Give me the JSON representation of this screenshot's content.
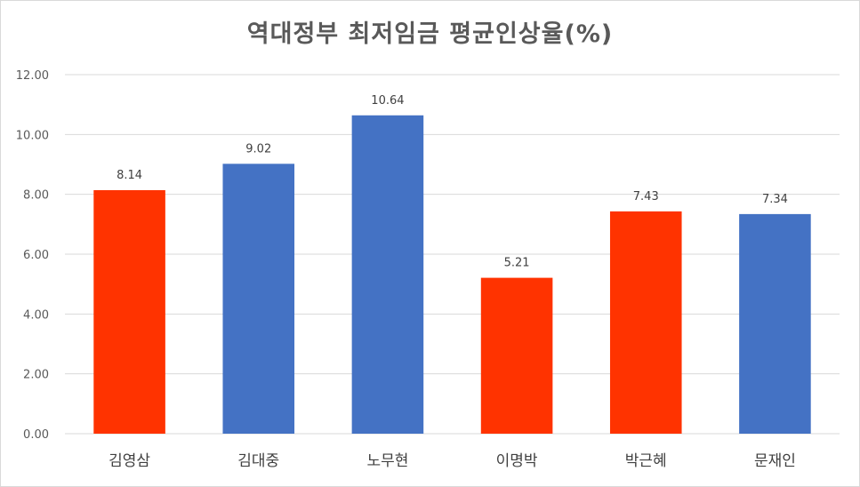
{
  "chart_data": {
    "type": "bar",
    "title": "역대정부 최저임금 평균인상율(%)",
    "categories": [
      "김영삼",
      "김대중",
      "노무현",
      "이명박",
      "박근혜",
      "문재인"
    ],
    "values": [
      8.14,
      9.02,
      10.64,
      5.21,
      7.43,
      7.34
    ],
    "data_labels": [
      "8.14",
      "9.02",
      "10.64",
      "5.21",
      "7.43",
      "7.34"
    ],
    "bar_colors": [
      "#ff3300",
      "#4472c4",
      "#4472c4",
      "#ff3300",
      "#ff3300",
      "#4472c4"
    ],
    "ylim": [
      0,
      12
    ],
    "yticks": [
      0,
      2,
      4,
      6,
      8,
      10,
      12
    ],
    "ytick_labels": [
      "0.00",
      "2.00",
      "4.00",
      "6.00",
      "8.00",
      "10.00",
      "12.00"
    ],
    "xlabel": "",
    "ylabel": "",
    "grid": true,
    "gridline_color": "#d9d9d9"
  }
}
